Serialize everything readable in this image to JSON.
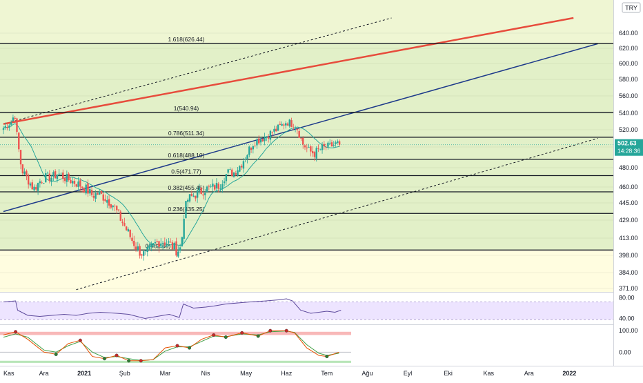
{
  "currency_badge": "TRY",
  "price_badge": {
    "price": "502.63",
    "countdown": "14:28:36",
    "value": 502.63
  },
  "colors": {
    "candle_up": "#26a69a",
    "candle_down": "#ef5350",
    "fib_band_yellow": "#fffde0",
    "fib_band_green": "#e2f0c8",
    "channel_solid_red": "#e74c3c",
    "channel_solid_blue": "#1e3a8a",
    "ma_line": "#26a69a",
    "rsi_line": "#7e57c2",
    "rsi_band": "#ede4ff",
    "stoch_k": "#e65100",
    "stoch_d": "#43a047",
    "price_badge": "#26a69a"
  },
  "chart_data": [
    {
      "type": "candlestick",
      "id": "price",
      "ylim": [
        370,
        655
      ],
      "y_ticks": [
        {
          "v": 640,
          "label": "640.00"
        },
        {
          "v": 620,
          "label": "620.00"
        },
        {
          "v": 600,
          "label": "600.00"
        },
        {
          "v": 580,
          "label": "580.00"
        },
        {
          "v": 560,
          "label": "560.00"
        },
        {
          "v": 540,
          "label": "540.00"
        },
        {
          "v": 520,
          "label": "520.00"
        },
        {
          "v": 500,
          "label": "500.00"
        },
        {
          "v": 480,
          "label": "480.00"
        },
        {
          "v": 460,
          "label": "460.00"
        },
        {
          "v": 445,
          "label": "445.00"
        },
        {
          "v": 429,
          "label": "429.00"
        },
        {
          "v": 413,
          "label": "413.00"
        },
        {
          "v": 398,
          "label": "398.00"
        },
        {
          "v": 384,
          "label": "384.00"
        },
        {
          "v": 371,
          "label": "371.00"
        }
      ],
      "x_ticks": [
        "Kas",
        "Ara",
        "2021",
        "Şub",
        "Mar",
        "Nis",
        "May",
        "Haz",
        "Tem",
        "Ağu",
        "Eyl",
        "Eki",
        "Kas",
        "Ara",
        "2022"
      ],
      "fib_levels": [
        {
          "ratio": "1.618",
          "value": 626.44,
          "label": "1.618(626.44)"
        },
        {
          "ratio": "1",
          "value": 540.94,
          "label": "1(540.94)"
        },
        {
          "ratio": "0.786",
          "value": 511.34,
          "label": "0.786(511.34)"
        },
        {
          "ratio": "0.618",
          "value": 488.1,
          "label": "0.618(488.10)"
        },
        {
          "ratio": "0.5",
          "value": 471.77,
          "label": "0.5(471.77)"
        },
        {
          "ratio": "0.382",
          "value": 455.45,
          "label": "0.382(455.45)"
        },
        {
          "ratio": "0.236",
          "value": 435.25,
          "label": "0.236(435.25)"
        },
        {
          "ratio": "0",
          "value": 402.6,
          "label": "0(402.60)"
        }
      ],
      "channel": {
        "red_line": {
          "from": {
            "month": 0,
            "price": 527
          },
          "to": {
            "month": 14.1,
            "price": 660
          }
        },
        "blue_line": {
          "from": {
            "month": 0,
            "price": 437
          },
          "to": {
            "month": 14.7,
            "price": 626
          }
        },
        "upper_dashed": {
          "from": {
            "month": 0,
            "price": 527
          },
          "to": {
            "month": 9.6,
            "price": 660
          }
        },
        "lower_dashed": {
          "from": {
            "month": 1.8,
            "price": 370
          },
          "to": {
            "month": 14.7,
            "price": 510
          }
        }
      },
      "price_path": [
        [
          0,
          522
        ],
        [
          0.2,
          530
        ],
        [
          0.28,
          540
        ],
        [
          0.35,
          505
        ],
        [
          0.45,
          478
        ],
        [
          0.6,
          468
        ],
        [
          0.75,
          458
        ],
        [
          0.9,
          466
        ],
        [
          1.05,
          470
        ],
        [
          1.2,
          470
        ],
        [
          1.35,
          474
        ],
        [
          1.5,
          470
        ],
        [
          1.7,
          466
        ],
        [
          1.9,
          462
        ],
        [
          2.05,
          458
        ],
        [
          2.2,
          452
        ],
        [
          2.35,
          454
        ],
        [
          2.5,
          450
        ],
        [
          2.7,
          444
        ],
        [
          2.9,
          430
        ],
        [
          3.05,
          420
        ],
        [
          3.2,
          410
        ],
        [
          3.35,
          402
        ],
        [
          3.5,
          398
        ],
        [
          3.65,
          404
        ],
        [
          3.75,
          408
        ],
        [
          3.85,
          410
        ],
        [
          4.0,
          410
        ],
        [
          4.1,
          408
        ],
        [
          4.2,
          405
        ],
        [
          4.3,
          402
        ],
        [
          4.4,
          405
        ],
        [
          4.45,
          432
        ],
        [
          4.55,
          448
        ],
        [
          4.7,
          452
        ],
        [
          4.85,
          455
        ],
        [
          5.0,
          458
        ],
        [
          5.2,
          460
        ],
        [
          5.35,
          462
        ],
        [
          5.45,
          470
        ],
        [
          5.55,
          475
        ],
        [
          5.7,
          475
        ],
        [
          5.85,
          482
        ],
        [
          6.0,
          492
        ],
        [
          6.2,
          506
        ],
        [
          6.4,
          510
        ],
        [
          6.6,
          516
        ],
        [
          6.75,
          520
        ],
        [
          6.9,
          526
        ],
        [
          7.0,
          530
        ],
        [
          7.1,
          528
        ],
        [
          7.25,
          524
        ],
        [
          7.4,
          504
        ],
        [
          7.55,
          496
        ],
        [
          7.7,
          494
        ],
        [
          7.85,
          498
        ],
        [
          8.0,
          500
        ],
        [
          8.15,
          502
        ],
        [
          8.25,
          504
        ],
        [
          8.35,
          502.63
        ]
      ]
    },
    {
      "type": "line",
      "id": "rsi",
      "ylim": [
        30,
        90
      ],
      "y_ticks": [
        {
          "v": 80,
          "label": "80.00"
        },
        {
          "v": 40,
          "label": "40.00"
        }
      ],
      "band": [
        38,
        72
      ],
      "series": [
        {
          "values": [
            [
              0,
              72
            ],
            [
              0.3,
              74
            ],
            [
              0.35,
              56
            ],
            [
              0.6,
              46
            ],
            [
              0.9,
              44
            ],
            [
              1.2,
              46
            ],
            [
              1.5,
              48
            ],
            [
              1.8,
              46
            ],
            [
              2.1,
              50
            ],
            [
              2.4,
              52
            ],
            [
              2.8,
              50
            ],
            [
              3.1,
              48
            ],
            [
              3.3,
              44
            ],
            [
              3.5,
              40
            ],
            [
              3.8,
              44
            ],
            [
              4.1,
              48
            ],
            [
              4.35,
              42
            ],
            [
              4.45,
              68
            ],
            [
              4.7,
              60
            ],
            [
              5.0,
              62
            ],
            [
              5.2,
              64
            ],
            [
              5.5,
              68
            ],
            [
              5.8,
              70
            ],
            [
              6.1,
              72
            ],
            [
              6.5,
              74
            ],
            [
              6.8,
              76
            ],
            [
              7.0,
              78
            ],
            [
              7.15,
              74
            ],
            [
              7.35,
              56
            ],
            [
              7.6,
              50
            ],
            [
              7.8,
              52
            ],
            [
              8.0,
              54
            ],
            [
              8.2,
              52
            ],
            [
              8.35,
              56
            ]
          ]
        }
      ]
    },
    {
      "type": "line",
      "id": "stoch",
      "ylim": [
        -60,
        120
      ],
      "y_ticks": [
        {
          "v": 100,
          "label": "100.00"
        },
        {
          "v": 0,
          "label": "0.00"
        }
      ],
      "overbought": 80,
      "oversold": -40,
      "series": [
        {
          "values": [
            [
              0,
              80
            ],
            [
              0.3,
              95
            ],
            [
              0.6,
              60
            ],
            [
              1.0,
              0
            ],
            [
              1.3,
              -10
            ],
            [
              1.6,
              40
            ],
            [
              1.9,
              55
            ],
            [
              2.2,
              -20
            ],
            [
              2.5,
              -30
            ],
            [
              2.8,
              -15
            ],
            [
              3.1,
              -40
            ],
            [
              3.4,
              -40
            ],
            [
              3.7,
              -35
            ],
            [
              4.0,
              20
            ],
            [
              4.3,
              30
            ],
            [
              4.6,
              20
            ],
            [
              4.9,
              60
            ],
            [
              5.2,
              80
            ],
            [
              5.5,
              70
            ],
            [
              5.9,
              90
            ],
            [
              6.3,
              75
            ],
            [
              6.6,
              100
            ],
            [
              7.0,
              100
            ],
            [
              7.2,
              90
            ],
            [
              7.5,
              20
            ],
            [
              7.8,
              -15
            ],
            [
              8.0,
              -20
            ],
            [
              8.3,
              0
            ]
          ]
        },
        {
          "values": [
            [
              0,
              70
            ],
            [
              0.3,
              85
            ],
            [
              0.6,
              70
            ],
            [
              1.0,
              10
            ],
            [
              1.3,
              0
            ],
            [
              1.6,
              30
            ],
            [
              1.9,
              50
            ],
            [
              2.2,
              0
            ],
            [
              2.5,
              -25
            ],
            [
              2.8,
              -20
            ],
            [
              3.1,
              -30
            ],
            [
              3.4,
              -38
            ],
            [
              3.7,
              -35
            ],
            [
              4.0,
              5
            ],
            [
              4.3,
              25
            ],
            [
              4.6,
              25
            ],
            [
              4.9,
              50
            ],
            [
              5.2,
              75
            ],
            [
              5.5,
              72
            ],
            [
              5.9,
              85
            ],
            [
              6.3,
              80
            ],
            [
              6.6,
              95
            ],
            [
              7.0,
              98
            ],
            [
              7.2,
              92
            ],
            [
              7.5,
              35
            ],
            [
              7.8,
              -5
            ],
            [
              8.0,
              -15
            ],
            [
              8.3,
              -5
            ]
          ]
        }
      ]
    }
  ]
}
